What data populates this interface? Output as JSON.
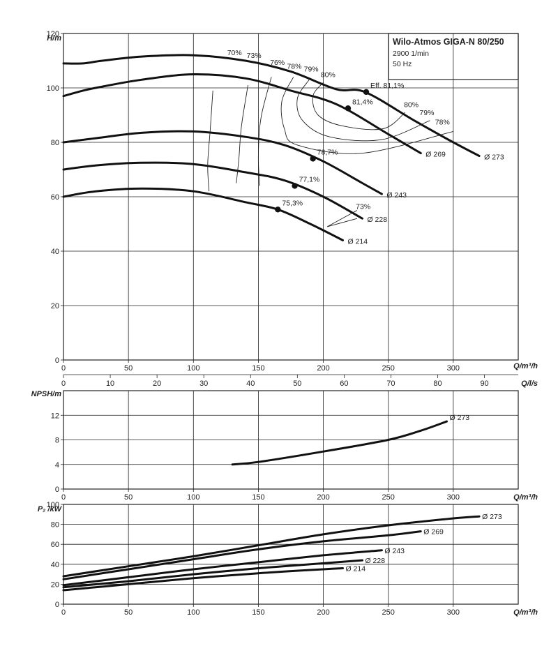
{
  "title_box": {
    "model": "Wilo-Atmos GIGA-N 80/250",
    "speed": "2900 1/min",
    "freq": "50 Hz"
  },
  "axes": {
    "q_m3h_label": "Q/m³/h",
    "q_ls_label": "Q/l/s",
    "h_label": "H/m",
    "npsh_label": "NPSH/m",
    "p2_label": "P₂ /kW"
  },
  "chart_data": [
    {
      "type": "line",
      "panel": "head",
      "xlabel": "Q/m³/h",
      "ylabel": "H/m",
      "xlim": [
        0,
        350
      ],
      "ylim": [
        0,
        120
      ],
      "x_ticks": [
        0,
        50,
        100,
        150,
        200,
        250,
        300
      ],
      "y_ticks": [
        0,
        20,
        40,
        60,
        80,
        100,
        120
      ],
      "secondary_x": {
        "label": "Q/l/s",
        "ticks": [
          0,
          10,
          20,
          30,
          40,
          50,
          60,
          70,
          80,
          90
        ]
      },
      "series": [
        {
          "name": "Ø 273",
          "points": [
            [
              0,
              109
            ],
            [
              15,
              109
            ],
            [
              30,
              110
            ],
            [
              60,
              111.5
            ],
            [
              100,
              112
            ],
            [
              140,
              110
            ],
            [
              175,
              106
            ],
            [
              210,
              99.5
            ],
            [
              232,
              98.5
            ],
            [
              270,
              88
            ],
            [
              300,
              80
            ],
            [
              320,
              75
            ]
          ]
        },
        {
          "name": "Ø 269",
          "points": [
            [
              0,
              97
            ],
            [
              15,
              99
            ],
            [
              30,
              100.5
            ],
            [
              60,
              103
            ],
            [
              100,
              105
            ],
            [
              140,
              103.5
            ],
            [
              175,
              99
            ],
            [
              210,
              94
            ],
            [
              250,
              83
            ],
            [
              275,
              76
            ]
          ]
        },
        {
          "name": "Ø 243",
          "points": [
            [
              0,
              80
            ],
            [
              25,
              81.5
            ],
            [
              60,
              83.5
            ],
            [
              100,
              84
            ],
            [
              140,
              82
            ],
            [
              170,
              79
            ],
            [
              200,
              73
            ],
            [
              230,
              65
            ],
            [
              245,
              61
            ]
          ]
        },
        {
          "name": "Ø 228",
          "points": [
            [
              0,
              70
            ],
            [
              25,
              71.5
            ],
            [
              60,
              72.5
            ],
            [
              100,
              72
            ],
            [
              140,
              69
            ],
            [
              170,
              66
            ],
            [
              200,
              60
            ],
            [
              230,
              52
            ]
          ]
        },
        {
          "name": "Ø 214",
          "points": [
            [
              0,
              60
            ],
            [
              25,
              62
            ],
            [
              60,
              63
            ],
            [
              100,
              62
            ],
            [
              140,
              58
            ],
            [
              165,
              55.3
            ],
            [
              190,
              50
            ],
            [
              215,
              44
            ]
          ]
        }
      ],
      "best_efficiency_points": [
        {
          "label": "Eff. 81,1%",
          "x": 233,
          "y": 98.5
        },
        {
          "label": "81,4%",
          "x": 219,
          "y": 92.5
        },
        {
          "label": "78,7%",
          "x": 192,
          "y": 74
        },
        {
          "label": "77,1%",
          "x": 178,
          "y": 64
        },
        {
          "label": "75,3%",
          "x": 165,
          "y": 55.3
        }
      ],
      "efficiency_labels": [
        "70%",
        "73%",
        "76%",
        "78%",
        "79%",
        "80%",
        "80%",
        "79%",
        "78%",
        "73%"
      ],
      "curve_end_labels": [
        "Ø 273",
        "Ø 269",
        "Ø 243",
        "Ø 228",
        "Ø 214"
      ]
    },
    {
      "type": "line",
      "panel": "npsh",
      "xlabel": "Q/m³/h",
      "ylabel": "NPSH/m",
      "xlim": [
        0,
        350
      ],
      "ylim": [
        0,
        16
      ],
      "x_ticks": [
        0,
        50,
        100,
        150,
        200,
        250,
        300
      ],
      "y_ticks": [
        0,
        4,
        8,
        12
      ],
      "series": [
        {
          "name": "Ø 273",
          "points": [
            [
              130,
              4.0
            ],
            [
              150,
              4.4
            ],
            [
              200,
              6.1
            ],
            [
              250,
              8.0
            ],
            [
              275,
              9.5
            ],
            [
              295,
              11.0
            ]
          ]
        }
      ]
    },
    {
      "type": "line",
      "panel": "power",
      "xlabel": "Q/m³/h",
      "ylabel": "P₂ /kW",
      "xlim": [
        0,
        350
      ],
      "ylim": [
        0,
        100
      ],
      "x_ticks": [
        0,
        50,
        100,
        150,
        200,
        250,
        300
      ],
      "y_ticks": [
        0,
        20,
        40,
        60,
        80,
        100
      ],
      "series": [
        {
          "name": "Ø 273",
          "points": [
            [
              0,
              28
            ],
            [
              50,
              38
            ],
            [
              100,
              48
            ],
            [
              150,
              59
            ],
            [
              200,
              70
            ],
            [
              250,
              79
            ],
            [
              300,
              86
            ],
            [
              320,
              88
            ]
          ]
        },
        {
          "name": "Ø 269",
          "points": [
            [
              0,
              25
            ],
            [
              50,
              35
            ],
            [
              100,
              45
            ],
            [
              150,
              55
            ],
            [
              200,
              63
            ],
            [
              250,
              69
            ],
            [
              275,
              73
            ]
          ]
        },
        {
          "name": "Ø 243",
          "points": [
            [
              0,
              19
            ],
            [
              50,
              27
            ],
            [
              100,
              35
            ],
            [
              150,
              42
            ],
            [
              200,
              49
            ],
            [
              245,
              54
            ]
          ]
        },
        {
          "name": "Ø 228",
          "points": [
            [
              0,
              17
            ],
            [
              50,
              23
            ],
            [
              100,
              30
            ],
            [
              150,
              36
            ],
            [
              200,
              41
            ],
            [
              230,
              44
            ]
          ]
        },
        {
          "name": "Ø 214",
          "points": [
            [
              0,
              14
            ],
            [
              50,
              20
            ],
            [
              100,
              26
            ],
            [
              150,
              31
            ],
            [
              200,
              35
            ],
            [
              215,
              36
            ]
          ]
        }
      ]
    }
  ]
}
